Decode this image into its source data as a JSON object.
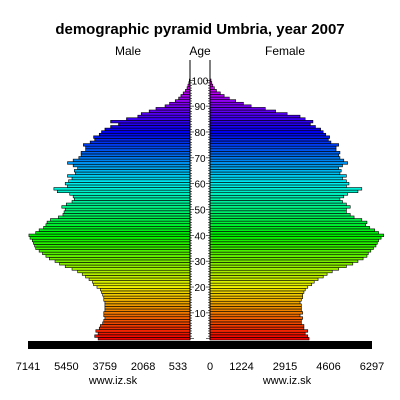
{
  "chart_data": {
    "type": "bar",
    "orientation": "horizontal-pyramid",
    "title": "demographic pyramid Umbria, year 2007",
    "left_label": "Male",
    "center_label": "Age",
    "right_label": "Female",
    "source_left": "www.iz.sk",
    "source_right": "www.iz.sk",
    "left_ticks": [
      "7141",
      "5450",
      "3759",
      "2068",
      "533"
    ],
    "right_ticks": [
      "0",
      "1224",
      "2915",
      "4606",
      "6297"
    ],
    "age_ticks": [
      "10",
      "20",
      "30",
      "40",
      "50",
      "60",
      "70",
      "80",
      "90",
      "100"
    ],
    "male_xlim": [
      0,
      7141
    ],
    "female_xlim": [
      0,
      6297
    ],
    "ages": [
      0,
      1,
      2,
      3,
      4,
      5,
      6,
      7,
      8,
      9,
      10,
      11,
      12,
      13,
      14,
      15,
      16,
      17,
      18,
      19,
      20,
      21,
      22,
      23,
      24,
      25,
      26,
      27,
      28,
      29,
      30,
      31,
      32,
      33,
      34,
      35,
      36,
      37,
      38,
      39,
      40,
      41,
      42,
      43,
      44,
      45,
      46,
      47,
      48,
      49,
      50,
      51,
      52,
      53,
      54,
      55,
      56,
      57,
      58,
      59,
      60,
      61,
      62,
      63,
      64,
      65,
      66,
      67,
      68,
      69,
      70,
      71,
      72,
      73,
      74,
      75,
      76,
      77,
      78,
      79,
      80,
      81,
      82,
      83,
      84,
      85,
      86,
      87,
      88,
      89,
      90,
      91,
      92,
      93,
      94,
      95,
      96,
      97,
      98,
      99,
      100
    ],
    "series": [
      {
        "name": "Male",
        "values": [
          4050,
          4200,
          4050,
          4150,
          4000,
          3950,
          3850,
          3800,
          3750,
          3800,
          3800,
          3750,
          3750,
          3750,
          3750,
          3800,
          3800,
          3850,
          3900,
          3950,
          4100,
          4250,
          4300,
          4450,
          4600,
          4750,
          4950,
          5200,
          5500,
          5750,
          5950,
          6200,
          6350,
          6500,
          6650,
          6800,
          6850,
          6900,
          6950,
          7050,
          7100,
          6800,
          6650,
          6450,
          6350,
          6300,
          6150,
          5800,
          5600,
          5550,
          5500,
          5650,
          5450,
          5200,
          5100,
          5150,
          5300,
          5850,
          6000,
          5400,
          5500,
          5350,
          5200,
          5400,
          5050,
          5100,
          4950,
          5150,
          5400,
          5150,
          4900,
          4800,
          4800,
          4600,
          4600,
          4700,
          4400,
          4200,
          4250,
          4000,
          3900,
          3750,
          3500,
          3150,
          3500,
          2800,
          2300,
          2150,
          1800,
          1500,
          1100,
          900,
          650,
          500,
          400,
          300,
          200,
          130,
          90,
          50,
          30
        ]
      },
      {
        "name": "Female",
        "values": [
          3850,
          3800,
          3700,
          3800,
          3650,
          3650,
          3550,
          3550,
          3600,
          3500,
          3600,
          3550,
          3550,
          3550,
          3500,
          3550,
          3600,
          3600,
          3650,
          3700,
          3800,
          3950,
          4050,
          4200,
          4400,
          4550,
          4750,
          5000,
          5300,
          5550,
          5750,
          5950,
          6100,
          6150,
          6250,
          6350,
          6450,
          6500,
          6550,
          6650,
          6750,
          6550,
          6400,
          6200,
          6050,
          6100,
          5900,
          5600,
          5450,
          5300,
          5300,
          5450,
          5300,
          5150,
          5050,
          5200,
          5350,
          5750,
          5900,
          5300,
          5400,
          5300,
          5150,
          5300,
          5050,
          5100,
          5000,
          5150,
          5350,
          5200,
          5050,
          5000,
          5050,
          4900,
          4900,
          5000,
          4700,
          4600,
          4650,
          4500,
          4400,
          4300,
          4100,
          3900,
          4000,
          3700,
          3500,
          3000,
          2550,
          2150,
          1600,
          1300,
          1000,
          750,
          550,
          400,
          250,
          170,
          110,
          70,
          40
        ]
      }
    ]
  }
}
